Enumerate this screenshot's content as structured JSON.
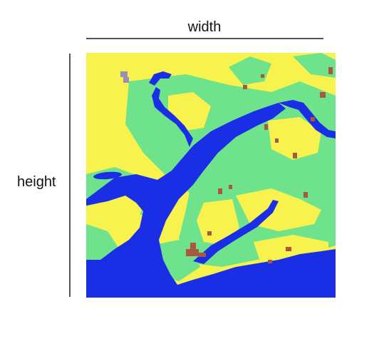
{
  "labels": {
    "width": "width",
    "height": "height"
  },
  "map": {
    "colors": {
      "water": "#1a2ee6",
      "land_high": "#f7f24e",
      "land_mid": "#6fe38b",
      "built": "#a9573d",
      "cloud": "#9a8fb0"
    }
  }
}
